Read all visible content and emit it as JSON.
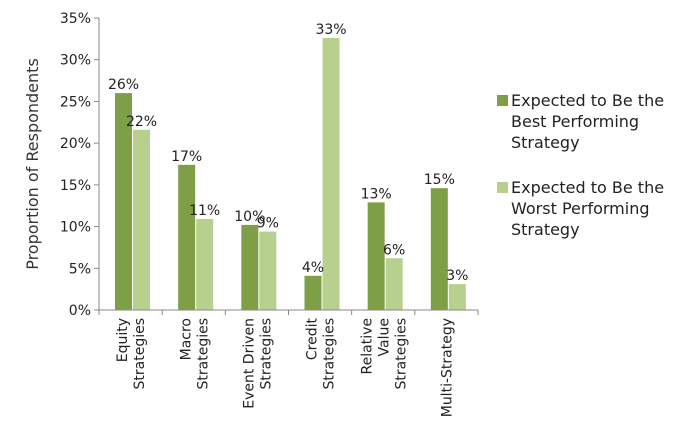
{
  "chart_data": {
    "type": "bar",
    "ylabel": "Proportion of Respondents",
    "ylim": [
      0,
      35
    ],
    "yticks": [
      "0%",
      "5%",
      "10%",
      "15%",
      "20%",
      "25%",
      "30%",
      "35%"
    ],
    "ytick_values": [
      0,
      5,
      10,
      15,
      20,
      25,
      30,
      35
    ],
    "categories": [
      [
        "Equity",
        "Strategies"
      ],
      [
        "Macro",
        "Strategies"
      ],
      [
        "Event Driven",
        "Strategies"
      ],
      [
        "Credit",
        "Strategies"
      ],
      [
        "Relative",
        "Value",
        "Strategies"
      ],
      [
        "Multi-Strategy"
      ]
    ],
    "series": [
      {
        "name": "Expected to Be the Best Performing Strategy",
        "name_lines": [
          "Expected to Be the",
          "Best Performing",
          "Strategy"
        ],
        "color": "#7F9F47",
        "values": [
          26,
          17.4,
          10.2,
          4.1,
          12.9,
          14.6
        ],
        "labels": [
          "26%",
          "17%",
          "10%",
          "4%",
          "13%",
          "15%"
        ]
      },
      {
        "name": "Expected to Be the Worst Performing Strategy",
        "name_lines": [
          "Expected to Be the",
          "Worst Performing",
          "Strategy"
        ],
        "color": "#B7D08E",
        "values": [
          21.6,
          10.9,
          9.4,
          32.6,
          6.2,
          3.1
        ],
        "labels": [
          "22%",
          "11%",
          "9%",
          "33%",
          "6%",
          "3%"
        ]
      }
    ],
    "grid": false,
    "legend_position": "right"
  }
}
